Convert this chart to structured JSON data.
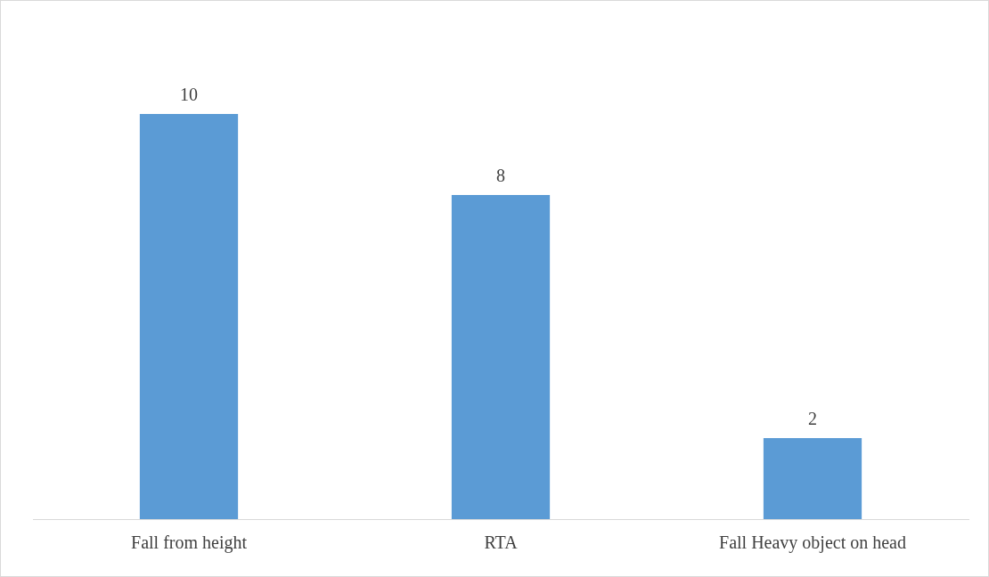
{
  "chart_data": {
    "type": "bar",
    "categories": [
      "Fall from height",
      "RTA",
      "Fall Heavy object on head"
    ],
    "values": [
      10,
      8,
      2
    ],
    "color": "#5b9bd5",
    "data_labels": true
  }
}
